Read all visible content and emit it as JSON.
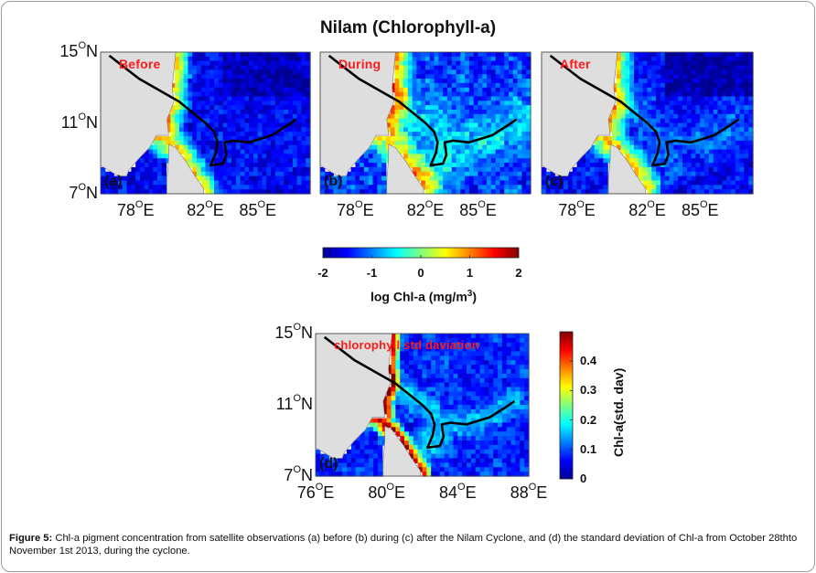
{
  "figure_title": "Nilam (Chlorophyll-a)",
  "caption": {
    "label": "Figure 5:",
    "text": " Chl-a pigment concentration from satellite observations (a) before (b) during (c) after the Nilam Cyclone, and (d) the standard deviation of Chl-a from October 28thto November 1st 2013, during the cyclone."
  },
  "colors": {
    "land": "#dedede",
    "track": "#000000",
    "tag_text": "#ff1a1a",
    "jet": [
      "#00008f",
      "#0000ff",
      "#0080ff",
      "#00ffff",
      "#80ff80",
      "#ffff00",
      "#ff8000",
      "#ff0000",
      "#800000"
    ]
  },
  "chart_data": [
    {
      "type": "heatmap",
      "panel": "(a)",
      "tag": "Before",
      "title": "Nilam (Chlorophyll-a)",
      "variable": "log Chl-a (mg/m3)",
      "x_ticks": [
        "78",
        "82",
        "85"
      ],
      "x_ticks_num": [
        78,
        82,
        85
      ],
      "y_ticks": [
        "7",
        "11",
        "15"
      ],
      "y_ticks_num": [
        7,
        11,
        15
      ],
      "xlim": [
        76,
        88
      ],
      "ylim": [
        7,
        15
      ],
      "track": [
        [
          76.5,
          14.8
        ],
        [
          78.2,
          13.5
        ],
        [
          80.5,
          12.2
        ],
        [
          82.0,
          11.0
        ],
        [
          82.5,
          10.5
        ],
        [
          82.7,
          9.9
        ],
        [
          82.6,
          9.3
        ],
        [
          82.3,
          8.6
        ],
        [
          83.0,
          8.7
        ],
        [
          83.2,
          9.2
        ],
        [
          83.1,
          9.9
        ],
        [
          83.6,
          10.0
        ],
        [
          84.5,
          9.9
        ],
        [
          85.8,
          10.3
        ],
        [
          86.6,
          10.8
        ],
        [
          87.2,
          11.2
        ]
      ],
      "field_summary": "coastal high (~1 to 2) along east coast of India and Sri Lanka; open Bay of Bengal low (~-1.5 to -2)"
    },
    {
      "type": "heatmap",
      "panel": "(b)",
      "tag": "During",
      "variable": "log Chl-a (mg/m3)",
      "x_ticks": [
        "78",
        "82",
        "85"
      ],
      "x_ticks_num": [
        78,
        82,
        85
      ],
      "y_ticks": [
        "7",
        "11",
        "15"
      ],
      "y_ticks_num": [
        7,
        11,
        15
      ],
      "xlim": [
        76,
        88
      ],
      "ylim": [
        7,
        15
      ],
      "field_summary": "elevated Chl-a spread offshore along the cyclone track (~-1 to 0)"
    },
    {
      "type": "heatmap",
      "panel": "(c)",
      "tag": "After",
      "variable": "log Chl-a (mg/m3)",
      "x_ticks": [
        "78",
        "82",
        "85"
      ],
      "x_ticks_num": [
        78,
        82,
        85
      ],
      "y_ticks": [
        "7",
        "11",
        "15"
      ],
      "y_ticks_num": [
        7,
        11,
        15
      ],
      "xlim": [
        76,
        88
      ],
      "ylim": [
        7,
        15
      ],
      "field_summary": "coastal enhancement persists; open ocean mostly low"
    },
    {
      "type": "heatmap",
      "panel": "(d)",
      "tag": "chlorophyll std daviation",
      "variable": "Chl-a(std. dav)",
      "x_ticks": [
        "76",
        "80",
        "84",
        "88"
      ],
      "x_ticks_num": [
        76,
        80,
        84,
        88
      ],
      "y_ticks": [
        "7",
        "11",
        "15"
      ],
      "y_ticks_num": [
        7,
        11,
        15
      ],
      "xlim": [
        76,
        88
      ],
      "ylim": [
        7,
        15
      ],
      "field_summary": "high std (~0.4+) along coast, mostly ~0 offshore"
    }
  ],
  "colorbar_main": {
    "label": "log Chl-a (mg/m",
    "label_sup": "3",
    "label_end": ")",
    "ticks": [
      "-2",
      "-1",
      "0",
      "1",
      "2"
    ],
    "ticks_num": [
      -2,
      -1,
      0,
      1,
      2
    ],
    "range": [
      -2,
      2
    ]
  },
  "colorbar_std": {
    "label": "Chl-a(std. dav)",
    "ticks": [
      "0",
      "0.1",
      "0.2",
      "0.3",
      "0.4"
    ],
    "ticks_num": [
      0,
      0.1,
      0.2,
      0.3,
      0.4
    ],
    "range": [
      0,
      0.5
    ]
  },
  "units": {
    "deg": "O",
    "north": "N",
    "east": "E"
  }
}
